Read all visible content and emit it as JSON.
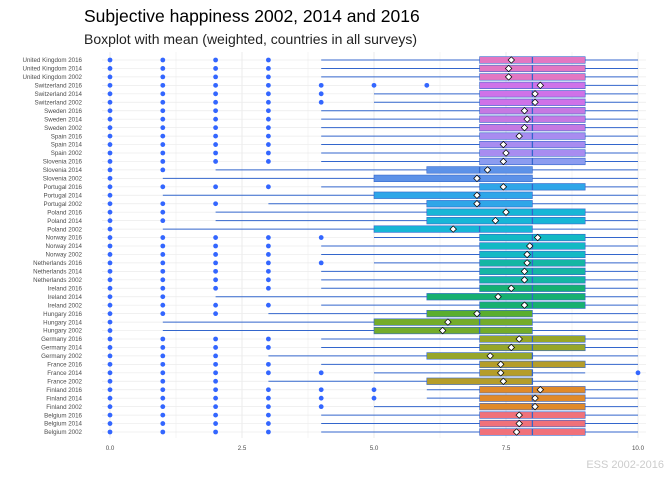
{
  "title": "Subjective happiness 2002, 2014 and 2016",
  "subtitle": "Boxplot with mean (weighted, countries in all surveys)",
  "caption": "ESS 2002-2016",
  "colors": {
    "whisker": "#3366cc",
    "outlier": "#3366ff",
    "median": "#3366cc",
    "box_border": "#3366cc",
    "grid": "#ebebeb",
    "mean_fill": "#ffffff",
    "mean_stroke": "#000000"
  },
  "chart_data": {
    "type": "boxplot",
    "orientation": "horizontal",
    "xlim": [
      0,
      10
    ],
    "x_ticks": [
      0,
      2.5,
      5,
      7.5,
      10
    ],
    "x_tick_labels": [
      "0.0",
      "2.5",
      "5.0",
      "7.5",
      "10.0"
    ],
    "grid": true,
    "legend": "none",
    "rows": [
      {
        "label": "United Kingdom 2016",
        "q1": 7,
        "median": 8,
        "q3": 9,
        "whisker_low": 4,
        "whisker_high": 10,
        "mean": 7.6,
        "outliers": [
          0,
          1,
          2,
          3
        ],
        "color": "#e377c2"
      },
      {
        "label": "United Kingdom 2014",
        "q1": 7,
        "median": 8,
        "q3": 9,
        "whisker_low": 4,
        "whisker_high": 10,
        "mean": 7.55,
        "outliers": [
          0,
          1,
          2,
          3
        ],
        "color": "#e377c2"
      },
      {
        "label": "United Kingdom 2002",
        "q1": 7,
        "median": 8,
        "q3": 9,
        "whisker_low": 4,
        "whisker_high": 10,
        "mean": 7.55,
        "outliers": [
          0,
          1,
          2,
          3
        ],
        "color": "#e377c2"
      },
      {
        "label": "Switzerland 2016",
        "q1": 7,
        "median": 8,
        "q3": 9,
        "whisker_low": 7,
        "whisker_high": 10,
        "mean": 8.15,
        "outliers": [
          0,
          1,
          2,
          3,
          4,
          5,
          6
        ],
        "color": "#cf72e8"
      },
      {
        "label": "Switzerland 2014",
        "q1": 7,
        "median": 8,
        "q3": 9,
        "whisker_low": 5,
        "whisker_high": 10,
        "mean": 8.05,
        "outliers": [
          0,
          1,
          2,
          3,
          4
        ],
        "color": "#cf72e8"
      },
      {
        "label": "Switzerland 2002",
        "q1": 7,
        "median": 8,
        "q3": 9,
        "whisker_low": 5,
        "whisker_high": 10,
        "mean": 8.05,
        "outliers": [
          0,
          1,
          2,
          3,
          4
        ],
        "color": "#cf72e8"
      },
      {
        "label": "Sweden 2016",
        "q1": 7,
        "median": 8,
        "q3": 9,
        "whisker_low": 4,
        "whisker_high": 10,
        "mean": 7.85,
        "outliers": [
          0,
          1,
          2,
          3
        ],
        "color": "#c679e2"
      },
      {
        "label": "Sweden 2014",
        "q1": 7,
        "median": 8,
        "q3": 9,
        "whisker_low": 4,
        "whisker_high": 10,
        "mean": 7.9,
        "outliers": [
          0,
          1,
          2,
          3
        ],
        "color": "#c679e2"
      },
      {
        "label": "Sweden 2002",
        "q1": 7,
        "median": 8,
        "q3": 9,
        "whisker_low": 4,
        "whisker_high": 10,
        "mean": 7.85,
        "outliers": [
          0,
          1,
          2,
          3
        ],
        "color": "#c679e2"
      },
      {
        "label": "Spain 2016",
        "q1": 7,
        "median": 8,
        "q3": 9,
        "whisker_low": 4,
        "whisker_high": 10,
        "mean": 7.75,
        "outliers": [
          0,
          1,
          2,
          3
        ],
        "color": "#a88cf0"
      },
      {
        "label": "Spain 2014",
        "q1": 7,
        "median": 8,
        "q3": 9,
        "whisker_low": 4,
        "whisker_high": 10,
        "mean": 7.45,
        "outliers": [
          0,
          1,
          2,
          3
        ],
        "color": "#a88cf0"
      },
      {
        "label": "Spain 2002",
        "q1": 7,
        "median": 8,
        "q3": 9,
        "whisker_low": 4,
        "whisker_high": 10,
        "mean": 7.5,
        "outliers": [
          0,
          1,
          2,
          3
        ],
        "color": "#a88cf0"
      },
      {
        "label": "Slovenia 2016",
        "q1": 7,
        "median": 8,
        "q3": 9,
        "whisker_low": 4,
        "whisker_high": 10,
        "mean": 7.45,
        "outliers": [
          0,
          1,
          2,
          3
        ],
        "color": "#8c9cf0"
      },
      {
        "label": "Slovenia 2014",
        "q1": 6,
        "median": 7,
        "q3": 8,
        "whisker_low": 2,
        "whisker_high": 10,
        "mean": 7.15,
        "outliers": [
          0,
          1
        ],
        "color": "#5d92e8"
      },
      {
        "label": "Slovenia 2002",
        "q1": 5,
        "median": 7,
        "q3": 8,
        "whisker_low": 1,
        "whisker_high": 10,
        "mean": 6.95,
        "outliers": [
          0
        ],
        "color": "#5d92e8"
      },
      {
        "label": "Portugal 2016",
        "q1": 7,
        "median": 8,
        "q3": 9,
        "whisker_low": 4,
        "whisker_high": 10,
        "mean": 7.45,
        "outliers": [
          0,
          1,
          2,
          3
        ],
        "color": "#2fa6e8"
      },
      {
        "label": "Portugal 2014",
        "q1": 5,
        "median": 7,
        "q3": 8,
        "whisker_low": 1,
        "whisker_high": 10,
        "mean": 6.95,
        "outliers": [
          0
        ],
        "color": "#2fa6e8"
      },
      {
        "label": "Portugal 2002",
        "q1": 6,
        "median": 7,
        "q3": 8,
        "whisker_low": 3,
        "whisker_high": 10,
        "mean": 6.95,
        "outliers": [
          0,
          1,
          2
        ],
        "color": "#2fa6e8"
      },
      {
        "label": "Poland 2016",
        "q1": 6,
        "median": 8,
        "q3": 9,
        "whisker_low": 2,
        "whisker_high": 10,
        "mean": 7.5,
        "outliers": [
          0,
          1
        ],
        "color": "#17b6d6"
      },
      {
        "label": "Poland 2014",
        "q1": 6,
        "median": 8,
        "q3": 9,
        "whisker_low": 2,
        "whisker_high": 10,
        "mean": 7.3,
        "outliers": [
          0,
          1
        ],
        "color": "#17b6d6"
      },
      {
        "label": "Poland 2002",
        "q1": 5,
        "median": 7,
        "q3": 8,
        "whisker_low": 1,
        "whisker_high": 10,
        "mean": 6.5,
        "outliers": [
          0
        ],
        "color": "#17b6d6"
      },
      {
        "label": "Norway 2016",
        "q1": 7,
        "median": 8,
        "q3": 9,
        "whisker_low": 5,
        "whisker_high": 10,
        "mean": 8.1,
        "outliers": [
          0,
          1,
          2,
          3,
          4
        ],
        "color": "#13b9c4"
      },
      {
        "label": "Norway 2014",
        "q1": 7,
        "median": 8,
        "q3": 9,
        "whisker_low": 4,
        "whisker_high": 10,
        "mean": 7.95,
        "outliers": [
          0,
          1,
          2,
          3
        ],
        "color": "#13b9c4"
      },
      {
        "label": "Norway 2002",
        "q1": 7,
        "median": 8,
        "q3": 9,
        "whisker_low": 4,
        "whisker_high": 10,
        "mean": 7.9,
        "outliers": [
          0,
          1,
          2,
          3
        ],
        "color": "#13b9c4"
      },
      {
        "label": "Netherlands 2016",
        "q1": 7,
        "median": 8,
        "q3": 9,
        "whisker_low": 5,
        "whisker_high": 10,
        "mean": 7.9,
        "outliers": [
          0,
          1,
          2,
          3,
          4
        ],
        "color": "#15b6a3"
      },
      {
        "label": "Netherlands 2014",
        "q1": 7,
        "median": 8,
        "q3": 9,
        "whisker_low": 4,
        "whisker_high": 10,
        "mean": 7.85,
        "outliers": [
          0,
          1,
          2,
          3
        ],
        "color": "#15b6a3"
      },
      {
        "label": "Netherlands 2002",
        "q1": 7,
        "median": 8,
        "q3": 9,
        "whisker_low": 4,
        "whisker_high": 10,
        "mean": 7.85,
        "outliers": [
          0,
          1,
          2,
          3
        ],
        "color": "#15b6a3"
      },
      {
        "label": "Ireland 2016",
        "q1": 7,
        "median": 8,
        "q3": 9,
        "whisker_low": 4,
        "whisker_high": 10,
        "mean": 7.6,
        "outliers": [
          0,
          1,
          2,
          3
        ],
        "color": "#17b070"
      },
      {
        "label": "Ireland 2014",
        "q1": 6,
        "median": 8,
        "q3": 9,
        "whisker_low": 2,
        "whisker_high": 10,
        "mean": 7.35,
        "outliers": [
          0,
          1
        ],
        "color": "#17b070"
      },
      {
        "label": "Ireland 2002",
        "q1": 7,
        "median": 8,
        "q3": 9,
        "whisker_low": 4,
        "whisker_high": 10,
        "mean": 7.85,
        "outliers": [
          0,
          1,
          2,
          3
        ],
        "color": "#17b070"
      },
      {
        "label": "Hungary 2016",
        "q1": 6,
        "median": 7,
        "q3": 8,
        "whisker_low": 3,
        "whisker_high": 10,
        "mean": 6.95,
        "outliers": [
          0,
          1,
          2
        ],
        "color": "#5aae2e"
      },
      {
        "label": "Hungary 2014",
        "q1": 5,
        "median": 7,
        "q3": 8,
        "whisker_low": 1,
        "whisker_high": 10,
        "mean": 6.4,
        "outliers": [
          0
        ],
        "color": "#74ac2a"
      },
      {
        "label": "Hungary 2002",
        "q1": 5,
        "median": 7,
        "q3": 8,
        "whisker_low": 1,
        "whisker_high": 10,
        "mean": 6.3,
        "outliers": [
          0
        ],
        "color": "#74ac2a"
      },
      {
        "label": "Germany 2016",
        "q1": 7,
        "median": 8,
        "q3": 9,
        "whisker_low": 4,
        "whisker_high": 10,
        "mean": 7.75,
        "outliers": [
          0,
          1,
          2,
          3
        ],
        "color": "#97a62a"
      },
      {
        "label": "Germany 2014",
        "q1": 7,
        "median": 8,
        "q3": 9,
        "whisker_low": 4,
        "whisker_high": 10,
        "mean": 7.6,
        "outliers": [
          0,
          1,
          2,
          3
        ],
        "color": "#97a62a"
      },
      {
        "label": "Germany 2002",
        "q1": 6,
        "median": 8,
        "q3": 8,
        "whisker_low": 3,
        "whisker_high": 10,
        "mean": 7.2,
        "outliers": [
          0,
          1,
          2
        ],
        "color": "#97a62a"
      },
      {
        "label": "France 2016",
        "q1": 7,
        "median": 8,
        "q3": 9,
        "whisker_low": 4,
        "whisker_high": 10,
        "mean": 7.4,
        "outliers": [
          0,
          1,
          2,
          3
        ],
        "color": "#b59d2a"
      },
      {
        "label": "France 2014",
        "q1": 7,
        "median": 8,
        "q3": 8,
        "whisker_low": 5,
        "whisker_high": 9,
        "mean": 7.4,
        "outliers": [
          0,
          1,
          2,
          3,
          4,
          10
        ],
        "color": "#b59d2a"
      },
      {
        "label": "France 2002",
        "q1": 6,
        "median": 8,
        "q3": 8,
        "whisker_low": 3,
        "whisker_high": 10,
        "mean": 7.45,
        "outliers": [
          0,
          1,
          2
        ],
        "color": "#b59d2a"
      },
      {
        "label": "Finland 2016",
        "q1": 7,
        "median": 8,
        "q3": 9,
        "whisker_low": 6,
        "whisker_high": 10,
        "mean": 8.15,
        "outliers": [
          0,
          1,
          2,
          3,
          4,
          5
        ],
        "color": "#e08a2a"
      },
      {
        "label": "Finland 2014",
        "q1": 7,
        "median": 8,
        "q3": 9,
        "whisker_low": 6,
        "whisker_high": 10,
        "mean": 8.05,
        "outliers": [
          0,
          1,
          2,
          3,
          4,
          5
        ],
        "color": "#e08a2a"
      },
      {
        "label": "Finland 2002",
        "q1": 7,
        "median": 8,
        "q3": 9,
        "whisker_low": 5,
        "whisker_high": 10,
        "mean": 8.05,
        "outliers": [
          0,
          1,
          2,
          3,
          4
        ],
        "color": "#e08a2a"
      },
      {
        "label": "Belgium 2016",
        "q1": 7,
        "median": 8,
        "q3": 9,
        "whisker_low": 4,
        "whisker_high": 10,
        "mean": 7.75,
        "outliers": [
          0,
          1,
          2,
          3
        ],
        "color": "#f0717a"
      },
      {
        "label": "Belgium 2014",
        "q1": 7,
        "median": 8,
        "q3": 9,
        "whisker_low": 4,
        "whisker_high": 10,
        "mean": 7.75,
        "outliers": [
          0,
          1,
          2,
          3
        ],
        "color": "#f0717a"
      },
      {
        "label": "Belgium 2002",
        "q1": 7,
        "median": 8,
        "q3": 9,
        "whisker_low": 4,
        "whisker_high": 10,
        "mean": 7.7,
        "outliers": [
          0,
          1,
          2,
          3
        ],
        "color": "#f0717a"
      }
    ]
  }
}
